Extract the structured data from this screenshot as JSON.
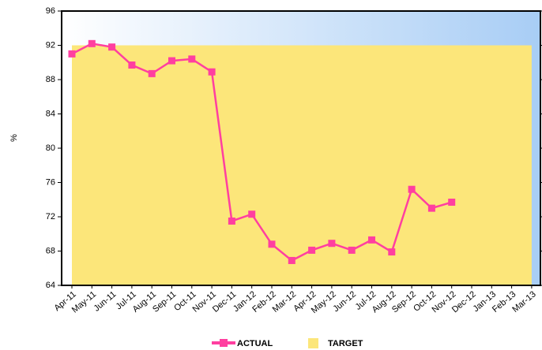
{
  "chart_data": {
    "type": "line",
    "y_label": "%",
    "categories": [
      "Apr-11",
      "May-11",
      "Jun-11",
      "Jul-11",
      "Aug-11",
      "Sep-11",
      "Oct-11",
      "Nov-11",
      "Dec-11",
      "Jan-12",
      "Feb-12",
      "Mar-12",
      "Apr-12",
      "May-12",
      "Jun-12",
      "Jul-12",
      "Aug-12",
      "Sep-12",
      "Oct-12",
      "Nov-12",
      "Dec-12",
      "Jan-13",
      "Feb-13",
      "Mar-13"
    ],
    "series": [
      {
        "name": "ACTUAL",
        "color": "#ff3fa0",
        "values": [
          91.0,
          92.2,
          91.8,
          89.7,
          88.7,
          90.2,
          90.4,
          88.9,
          71.5,
          72.3,
          68.8,
          66.9,
          68.1,
          68.9,
          68.1,
          69.3,
          67.9,
          75.2,
          73.0,
          73.7,
          null,
          null,
          null,
          null
        ]
      },
      {
        "name": "TARGET",
        "color": "#fce67a",
        "values": [
          92,
          92,
          92,
          92,
          92,
          92,
          92,
          92,
          92,
          92,
          92,
          92,
          92,
          92,
          92,
          92,
          92,
          92,
          92,
          92,
          92,
          92,
          92,
          92
        ]
      }
    ],
    "ylim": [
      64,
      96
    ],
    "yticks": [
      64,
      68,
      72,
      76,
      80,
      84,
      88,
      92,
      96
    ]
  }
}
